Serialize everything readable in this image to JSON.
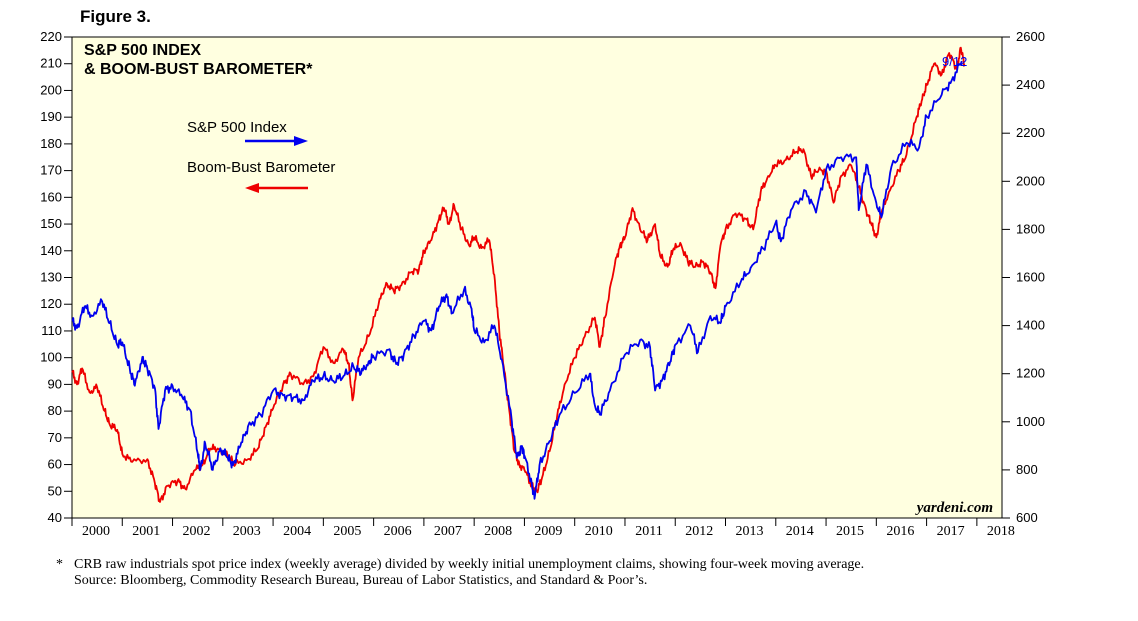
{
  "figure_label": "Figure 3.",
  "colors": {
    "background": "#ffffe0",
    "sp500": "#0000ee",
    "boom_bust": "#ee0000",
    "axis": "#000000"
  },
  "chart_data": {
    "type": "line",
    "title_line1": "S&P 500 INDEX",
    "title_line2": "& BOOM-BUST BAROMETER*",
    "left_axis": {
      "ticks": [
        "220",
        "210",
        "200",
        "190",
        "180",
        "170",
        "160",
        "150",
        "140",
        "130",
        "120",
        "110",
        "100",
        "90",
        "80",
        "70",
        "60",
        "50",
        "40"
      ],
      "range": [
        40,
        220
      ]
    },
    "right_axis": {
      "ticks": [
        "2600",
        "2400",
        "2200",
        "2000",
        "1800",
        "1600",
        "1400",
        "1200",
        "1000",
        "800",
        "600"
      ],
      "range": [
        600,
        2600
      ]
    },
    "years": [
      "2000",
      "2001",
      "2002",
      "2003",
      "2004",
      "2005",
      "2006",
      "2007",
      "2008",
      "2009",
      "2010",
      "2011",
      "2012",
      "2013",
      "2014",
      "2015",
      "2016",
      "2017",
      "2018"
    ],
    "x_range": [
      2000,
      2018.5
    ],
    "legend": {
      "sp500": "S&P 500 Index",
      "boom_bust": "Boom-Bust Barometer"
    },
    "annotation": "9/12",
    "credit": "yardeni.com",
    "series": [
      {
        "name": "S&P 500 Index",
        "axis": "right",
        "points": [
          [
            2000.0,
            1420
          ],
          [
            2000.1,
            1390
          ],
          [
            2000.25,
            1480
          ],
          [
            2000.4,
            1440
          ],
          [
            2000.6,
            1500
          ],
          [
            2000.75,
            1410
          ],
          [
            2000.9,
            1320
          ],
          [
            2001.0,
            1330
          ],
          [
            2001.15,
            1220
          ],
          [
            2001.25,
            1150
          ],
          [
            2001.4,
            1270
          ],
          [
            2001.5,
            1220
          ],
          [
            2001.65,
            1140
          ],
          [
            2001.72,
            970
          ],
          [
            2001.85,
            1130
          ],
          [
            2002.0,
            1150
          ],
          [
            2002.2,
            1100
          ],
          [
            2002.35,
            1050
          ],
          [
            2002.5,
            870
          ],
          [
            2002.55,
            800
          ],
          [
            2002.65,
            910
          ],
          [
            2002.8,
            800
          ],
          [
            2002.95,
            890
          ],
          [
            2003.1,
            850
          ],
          [
            2003.2,
            820
          ],
          [
            2003.35,
            900
          ],
          [
            2003.5,
            980
          ],
          [
            2003.75,
            1030
          ],
          [
            2004.0,
            1130
          ],
          [
            2004.2,
            1110
          ],
          [
            2004.4,
            1100
          ],
          [
            2004.6,
            1090
          ],
          [
            2004.8,
            1170
          ],
          [
            2005.0,
            1190
          ],
          [
            2005.2,
            1170
          ],
          [
            2005.4,
            1190
          ],
          [
            2005.6,
            1230
          ],
          [
            2005.75,
            1200
          ],
          [
            2005.9,
            1250
          ],
          [
            2006.0,
            1270
          ],
          [
            2006.3,
            1300
          ],
          [
            2006.45,
            1240
          ],
          [
            2006.6,
            1280
          ],
          [
            2006.8,
            1360
          ],
          [
            2007.0,
            1420
          ],
          [
            2007.15,
            1380
          ],
          [
            2007.3,
            1480
          ],
          [
            2007.45,
            1530
          ],
          [
            2007.55,
            1450
          ],
          [
            2007.8,
            1550
          ],
          [
            2007.95,
            1470
          ],
          [
            2008.0,
            1380
          ],
          [
            2008.2,
            1330
          ],
          [
            2008.4,
            1400
          ],
          [
            2008.55,
            1260
          ],
          [
            2008.75,
            1000
          ],
          [
            2008.85,
            850
          ],
          [
            2008.95,
            900
          ],
          [
            2009.0,
            860
          ],
          [
            2009.15,
            740
          ],
          [
            2009.2,
            680
          ],
          [
            2009.3,
            820
          ],
          [
            2009.5,
            920
          ],
          [
            2009.7,
            1030
          ],
          [
            2010.0,
            1120
          ],
          [
            2010.3,
            1200
          ],
          [
            2010.4,
            1070
          ],
          [
            2010.5,
            1030
          ],
          [
            2010.7,
            1130
          ],
          [
            2011.0,
            1280
          ],
          [
            2011.3,
            1340
          ],
          [
            2011.5,
            1310
          ],
          [
            2011.6,
            1130
          ],
          [
            2011.75,
            1180
          ],
          [
            2011.9,
            1250
          ],
          [
            2012.0,
            1320
          ],
          [
            2012.3,
            1400
          ],
          [
            2012.45,
            1290
          ],
          [
            2012.7,
            1440
          ],
          [
            2012.9,
            1410
          ],
          [
            2013.0,
            1480
          ],
          [
            2013.3,
            1580
          ],
          [
            2013.5,
            1640
          ],
          [
            2013.75,
            1720
          ],
          [
            2014.0,
            1830
          ],
          [
            2014.1,
            1750
          ],
          [
            2014.3,
            1880
          ],
          [
            2014.6,
            1960
          ],
          [
            2014.8,
            1870
          ],
          [
            2015.0,
            2050
          ],
          [
            2015.3,
            2100
          ],
          [
            2015.6,
            2100
          ],
          [
            2015.65,
            1880
          ],
          [
            2015.8,
            2070
          ],
          [
            2016.0,
            1910
          ],
          [
            2016.1,
            1850
          ],
          [
            2016.3,
            2060
          ],
          [
            2016.6,
            2160
          ],
          [
            2016.85,
            2140
          ],
          [
            2017.0,
            2270
          ],
          [
            2017.3,
            2360
          ],
          [
            2017.5,
            2420
          ],
          [
            2017.7,
            2500
          ]
        ]
      },
      {
        "name": "Boom-Bust Barometer",
        "axis": "left",
        "points": [
          [
            2000.0,
            95
          ],
          [
            2000.1,
            90
          ],
          [
            2000.2,
            96
          ],
          [
            2000.35,
            87
          ],
          [
            2000.5,
            89
          ],
          [
            2000.65,
            80
          ],
          [
            2000.75,
            75
          ],
          [
            2000.9,
            73
          ],
          [
            2001.0,
            64
          ],
          [
            2001.2,
            61
          ],
          [
            2001.5,
            62
          ],
          [
            2001.65,
            53
          ],
          [
            2001.75,
            46
          ],
          [
            2001.9,
            52
          ],
          [
            2002.1,
            54
          ],
          [
            2002.25,
            51
          ],
          [
            2002.45,
            58
          ],
          [
            2002.6,
            60
          ],
          [
            2002.75,
            66
          ],
          [
            2002.9,
            66
          ],
          [
            2003.1,
            63
          ],
          [
            2003.25,
            60
          ],
          [
            2003.5,
            62
          ],
          [
            2003.7,
            66
          ],
          [
            2003.85,
            74
          ],
          [
            2004.0,
            81
          ],
          [
            2004.2,
            90
          ],
          [
            2004.35,
            94
          ],
          [
            2004.6,
            90
          ],
          [
            2004.8,
            93
          ],
          [
            2005.0,
            104
          ],
          [
            2005.2,
            98
          ],
          [
            2005.4,
            103
          ],
          [
            2005.5,
            98
          ],
          [
            2005.58,
            84
          ],
          [
            2005.7,
            100
          ],
          [
            2005.9,
            108
          ],
          [
            2006.1,
            120
          ],
          [
            2006.25,
            128
          ],
          [
            2006.4,
            125
          ],
          [
            2006.55,
            127
          ],
          [
            2006.75,
            132
          ],
          [
            2006.9,
            133
          ],
          [
            2007.0,
            140
          ],
          [
            2007.15,
            144
          ],
          [
            2007.3,
            152
          ],
          [
            2007.4,
            156
          ],
          [
            2007.5,
            150
          ],
          [
            2007.6,
            157
          ],
          [
            2007.75,
            148
          ],
          [
            2007.9,
            142
          ],
          [
            2008.0,
            145
          ],
          [
            2008.15,
            141
          ],
          [
            2008.3,
            144
          ],
          [
            2008.4,
            131
          ],
          [
            2008.5,
            110
          ],
          [
            2008.6,
            95
          ],
          [
            2008.7,
            80
          ],
          [
            2008.8,
            65
          ],
          [
            2008.9,
            60
          ],
          [
            2009.0,
            58
          ],
          [
            2009.15,
            52
          ],
          [
            2009.25,
            50
          ],
          [
            2009.35,
            55
          ],
          [
            2009.5,
            65
          ],
          [
            2009.65,
            78
          ],
          [
            2009.8,
            90
          ],
          [
            2010.0,
            100
          ],
          [
            2010.2,
            108
          ],
          [
            2010.4,
            115
          ],
          [
            2010.5,
            104
          ],
          [
            2010.6,
            115
          ],
          [
            2010.8,
            135
          ],
          [
            2010.9,
            142
          ],
          [
            2011.0,
            145
          ],
          [
            2011.15,
            156
          ],
          [
            2011.3,
            148
          ],
          [
            2011.45,
            144
          ],
          [
            2011.6,
            150
          ],
          [
            2011.7,
            138
          ],
          [
            2011.85,
            134
          ],
          [
            2011.95,
            140
          ],
          [
            2012.1,
            143
          ],
          [
            2012.25,
            136
          ],
          [
            2012.4,
            134
          ],
          [
            2012.55,
            136
          ],
          [
            2012.7,
            132
          ],
          [
            2012.8,
            126
          ],
          [
            2012.9,
            142
          ],
          [
            2013.0,
            148
          ],
          [
            2013.2,
            154
          ],
          [
            2013.4,
            152
          ],
          [
            2013.55,
            148
          ],
          [
            2013.7,
            162
          ],
          [
            2013.85,
            168
          ],
          [
            2014.0,
            172
          ],
          [
            2014.2,
            174
          ],
          [
            2014.4,
            177
          ],
          [
            2014.55,
            178
          ],
          [
            2014.7,
            168
          ],
          [
            2014.85,
            170
          ],
          [
            2015.0,
            170
          ],
          [
            2015.15,
            158
          ],
          [
            2015.3,
            168
          ],
          [
            2015.5,
            172
          ],
          [
            2015.65,
            164
          ],
          [
            2015.8,
            155
          ],
          [
            2015.9,
            150
          ],
          [
            2016.0,
            145
          ],
          [
            2016.1,
            154
          ],
          [
            2016.25,
            162
          ],
          [
            2016.45,
            170
          ],
          [
            2016.6,
            176
          ],
          [
            2016.8,
            190
          ],
          [
            2016.9,
            196
          ],
          [
            2017.0,
            202
          ],
          [
            2017.15,
            210
          ],
          [
            2017.3,
            206
          ],
          [
            2017.45,
            214
          ],
          [
            2017.6,
            208
          ],
          [
            2017.68,
            216
          ],
          [
            2017.75,
            210
          ]
        ]
      }
    ]
  },
  "footnote": {
    "marker": "*",
    "line1": "CRB raw industrials spot price index (weekly average) divided by weekly initial unemployment claims, showing four-week moving average.",
    "line2": "Source: Bloomberg, Commodity Research Bureau, Bureau of Labor Statistics, and Standard & Poor’s."
  }
}
